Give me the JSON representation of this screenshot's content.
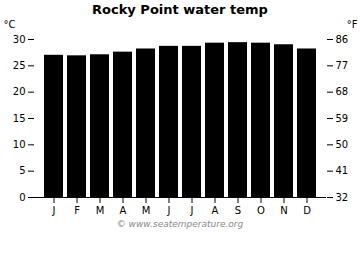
{
  "chart_data": {
    "type": "bar",
    "title": "Rocky Point water temp",
    "categories": [
      "J",
      "F",
      "M",
      "A",
      "M",
      "J",
      "J",
      "A",
      "S",
      "O",
      "N",
      "D"
    ],
    "values": [
      27.0,
      26.9,
      27.1,
      27.6,
      28.2,
      28.7,
      28.7,
      29.3,
      29.4,
      29.3,
      29.0,
      28.2
    ],
    "ylim": [
      0,
      30
    ],
    "yticks": [
      0,
      5,
      10,
      15,
      20,
      25,
      30
    ],
    "ylabel": "°C",
    "y2lim": [
      32,
      86
    ],
    "y2ticks": [
      32,
      41,
      50,
      59,
      68,
      77,
      86
    ],
    "y2label": "°F",
    "annotations": [
      "© www.seatemperature.org"
    ],
    "grid": false
  }
}
